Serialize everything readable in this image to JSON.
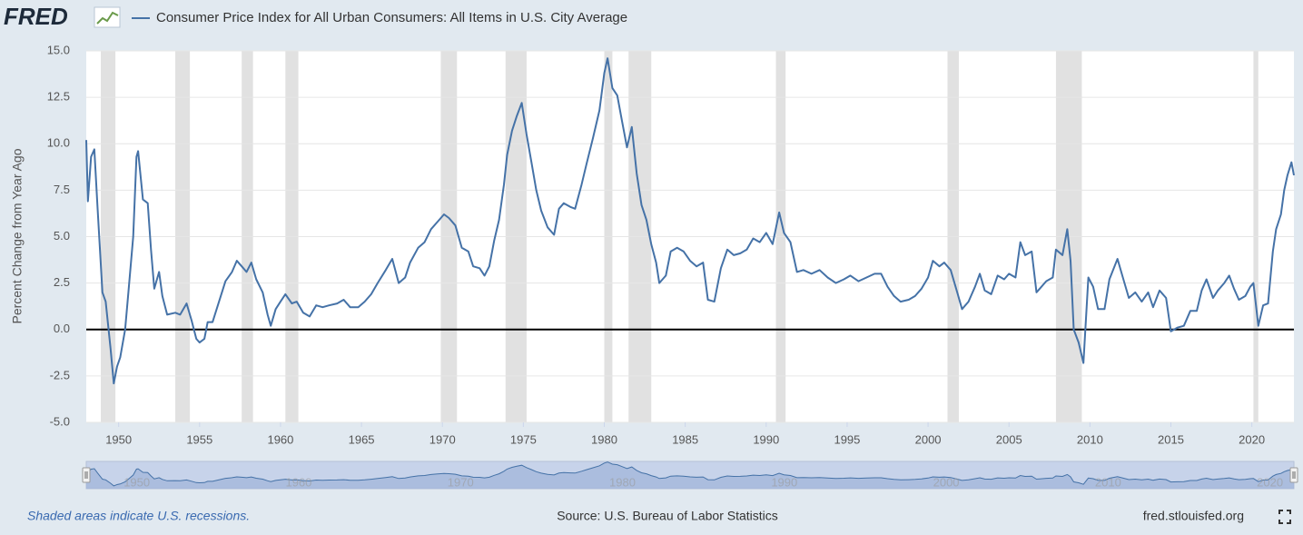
{
  "logo": "FRED",
  "chart_data": {
    "type": "line",
    "y_label": "Percent Change from Year Ago",
    "note": "Shaded areas indicate U.S. recessions.",
    "source": "Source: U.S. Bureau of Labor Statistics",
    "site": "fred.stlouisfed.org",
    "xlim": [
      1948,
      2022.6
    ],
    "xticks": [
      1950,
      1955,
      1960,
      1965,
      1970,
      1975,
      1980,
      1985,
      1990,
      1995,
      2000,
      2005,
      2010,
      2015,
      2020
    ],
    "ylim": [
      -5,
      15
    ],
    "yticks": [
      {
        "value": -5,
        "label": "-5.0"
      },
      {
        "value": -2.5,
        "label": "-2.5"
      },
      {
        "value": 0,
        "label": "0.0"
      },
      {
        "value": 2.5,
        "label": "2.5"
      },
      {
        "value": 5,
        "label": "5.0"
      },
      {
        "value": 7.5,
        "label": "7.5"
      },
      {
        "value": 10,
        "label": "10.0"
      },
      {
        "value": 12.5,
        "label": "12.5"
      },
      {
        "value": 15,
        "label": "15.0"
      }
    ],
    "grid": true,
    "recession_color": "#e1e1e1",
    "recessions": [
      [
        1948.9,
        1949.8
      ],
      [
        1953.5,
        1954.4
      ],
      [
        1957.6,
        1958.3
      ],
      [
        1960.3,
        1961.1
      ],
      [
        1969.9,
        1970.9
      ],
      [
        1973.9,
        1975.2
      ],
      [
        1980.0,
        1980.5
      ],
      [
        1981.5,
        1982.9
      ],
      [
        1990.6,
        1991.2
      ],
      [
        2001.2,
        2001.9
      ],
      [
        2007.9,
        2009.5
      ],
      [
        2020.1,
        2020.4
      ]
    ],
    "x": [
      1948.0,
      1948.1,
      1948.3,
      1948.5,
      1948.7,
      1949.0,
      1949.2,
      1949.5,
      1949.7,
      1949.9,
      1950.1,
      1950.4,
      1950.6,
      1950.9,
      1951.1,
      1951.2,
      1951.5,
      1951.8,
      1952.0,
      1952.2,
      1952.5,
      1952.7,
      1953.0,
      1953.5,
      1953.8,
      1954.2,
      1954.5,
      1954.8,
      1955.0,
      1955.3,
      1955.5,
      1955.8,
      1956.2,
      1956.6,
      1957.0,
      1957.3,
      1957.6,
      1957.9,
      1958.2,
      1958.5,
      1958.9,
      1959.2,
      1959.4,
      1959.7,
      1960.0,
      1960.3,
      1960.7,
      1961.0,
      1961.4,
      1961.8,
      1962.2,
      1962.6,
      1963.0,
      1963.5,
      1963.9,
      1964.3,
      1964.8,
      1965.2,
      1965.6,
      1966.0,
      1966.5,
      1966.9,
      1967.3,
      1967.7,
      1968.0,
      1968.5,
      1968.9,
      1969.3,
      1969.7,
      1970.1,
      1970.4,
      1970.8,
      1971.2,
      1971.6,
      1971.9,
      1972.3,
      1972.6,
      1972.9,
      1973.2,
      1973.5,
      1973.8,
      1974.0,
      1974.3,
      1974.6,
      1974.9,
      1975.2,
      1975.5,
      1975.8,
      1976.1,
      1976.5,
      1976.9,
      1977.2,
      1977.5,
      1977.9,
      1978.2,
      1978.6,
      1978.9,
      1979.3,
      1979.7,
      1980.0,
      1980.2,
      1980.5,
      1980.8,
      1981.1,
      1981.4,
      1981.7,
      1982.0,
      1982.3,
      1982.6,
      1982.9,
      1983.2,
      1983.4,
      1983.8,
      1984.1,
      1984.5,
      1984.9,
      1985.3,
      1985.7,
      1986.1,
      1986.4,
      1986.8,
      1987.2,
      1987.6,
      1988.0,
      1988.4,
      1988.8,
      1989.2,
      1989.6,
      1990.0,
      1990.4,
      1990.8,
      1991.1,
      1991.5,
      1991.9,
      1992.3,
      1992.8,
      1993.3,
      1993.8,
      1994.3,
      1994.8,
      1995.2,
      1995.7,
      1996.2,
      1996.7,
      1997.1,
      1997.5,
      1997.9,
      1998.3,
      1998.8,
      1999.2,
      1999.6,
      2000.0,
      2000.3,
      2000.7,
      2001.0,
      2001.4,
      2001.8,
      2002.1,
      2002.5,
      2002.9,
      2003.2,
      2003.5,
      2003.9,
      2004.3,
      2004.7,
      2005.0,
      2005.4,
      2005.7,
      2006.0,
      2006.4,
      2006.7,
      2006.9,
      2007.3,
      2007.7,
      2007.9,
      2008.3,
      2008.6,
      2008.8,
      2009.0,
      2009.3,
      2009.6,
      2009.9,
      2010.2,
      2010.5,
      2010.9,
      2011.2,
      2011.7,
      2012.0,
      2012.4,
      2012.8,
      2013.2,
      2013.6,
      2013.9,
      2014.3,
      2014.7,
      2015.0,
      2015.4,
      2015.8,
      2016.2,
      2016.6,
      2016.9,
      2017.2,
      2017.6,
      2017.9,
      2018.3,
      2018.6,
      2018.9,
      2019.2,
      2019.6,
      2019.9,
      2020.1,
      2020.4,
      2020.7,
      2021.0,
      2021.3,
      2021.5,
      2021.8,
      2022.0,
      2022.2,
      2022.45,
      2022.6
    ],
    "series": [
      {
        "name": "Consumer Price Index for All Urban Consumers: All Items in U.S. City Average",
        "color": "#4572a7",
        "values": [
          10.2,
          6.9,
          9.3,
          9.7,
          6.5,
          2.0,
          1.5,
          -1.0,
          -2.9,
          -2.0,
          -1.5,
          0.0,
          2.0,
          5.0,
          9.3,
          9.6,
          7.0,
          6.8,
          4.3,
          2.2,
          3.1,
          1.8,
          0.8,
          0.9,
          0.8,
          1.4,
          0.5,
          -0.5,
          -0.7,
          -0.5,
          0.4,
          0.4,
          1.5,
          2.6,
          3.1,
          3.7,
          3.4,
          3.1,
          3.6,
          2.7,
          2.0,
          0.8,
          0.2,
          1.1,
          1.5,
          1.9,
          1.4,
          1.5,
          0.9,
          0.7,
          1.3,
          1.2,
          1.3,
          1.4,
          1.6,
          1.2,
          1.2,
          1.5,
          1.9,
          2.5,
          3.2,
          3.8,
          2.5,
          2.8,
          3.6,
          4.4,
          4.7,
          5.4,
          5.8,
          6.2,
          6.0,
          5.6,
          4.4,
          4.2,
          3.4,
          3.3,
          2.9,
          3.4,
          4.8,
          5.9,
          7.8,
          9.4,
          10.7,
          11.5,
          12.2,
          10.5,
          9.0,
          7.5,
          6.4,
          5.5,
          5.1,
          6.5,
          6.8,
          6.6,
          6.5,
          7.8,
          8.9,
          10.3,
          11.8,
          13.8,
          14.6,
          13.0,
          12.6,
          11.2,
          9.8,
          10.9,
          8.4,
          6.7,
          5.9,
          4.6,
          3.6,
          2.5,
          2.9,
          4.2,
          4.4,
          4.2,
          3.7,
          3.4,
          3.6,
          1.6,
          1.5,
          3.3,
          4.3,
          4.0,
          4.1,
          4.3,
          4.9,
          4.7,
          5.2,
          4.6,
          6.3,
          5.2,
          4.7,
          3.1,
          3.2,
          3.0,
          3.2,
          2.8,
          2.5,
          2.7,
          2.9,
          2.6,
          2.8,
          3.0,
          3.0,
          2.3,
          1.8,
          1.5,
          1.6,
          1.8,
          2.2,
          2.8,
          3.7,
          3.4,
          3.6,
          3.2,
          2.0,
          1.1,
          1.5,
          2.3,
          3.0,
          2.1,
          1.9,
          2.9,
          2.7,
          3.0,
          2.8,
          4.7,
          4.0,
          4.2,
          2.0,
          2.2,
          2.6,
          2.8,
          4.3,
          4.0,
          5.4,
          3.7,
          0.0,
          -0.7,
          -1.8,
          2.8,
          2.3,
          1.1,
          1.1,
          2.7,
          3.8,
          2.9,
          1.7,
          2.0,
          1.5,
          2.0,
          1.2,
          2.1,
          1.7,
          -0.1,
          0.1,
          0.2,
          1.0,
          1.0,
          2.1,
          2.7,
          1.7,
          2.1,
          2.5,
          2.9,
          2.2,
          1.6,
          1.8,
          2.3,
          2.5,
          0.2,
          1.3,
          1.4,
          4.2,
          5.4,
          6.2,
          7.5,
          8.3,
          9.0,
          8.3
        ]
      }
    ]
  }
}
